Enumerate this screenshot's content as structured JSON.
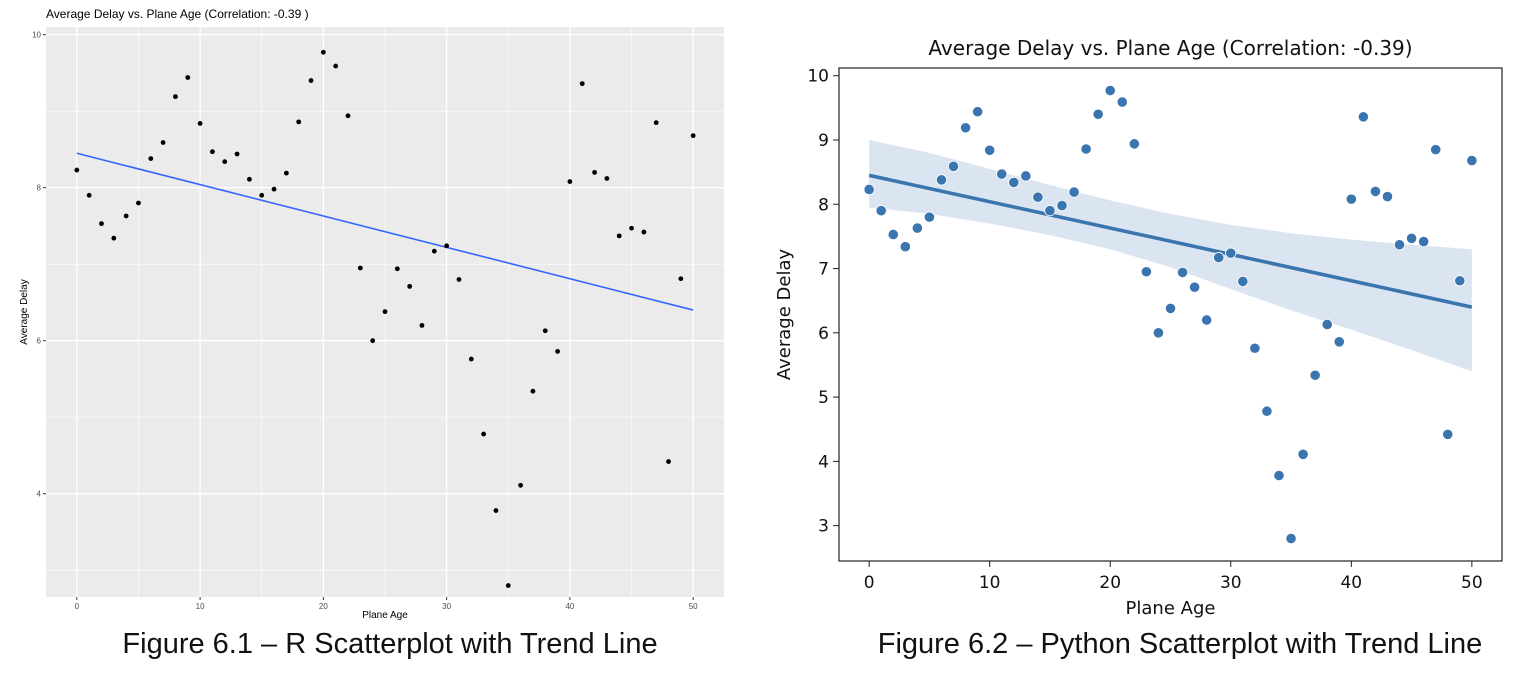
{
  "captions": {
    "r": "Figure 6.1 – R Scatterplot with Trend Line",
    "python": "Figure 6.2 – Python Scatterplot with Trend Line"
  },
  "chart_data": [
    {
      "id": "r-chart",
      "type": "scatter",
      "title": "Average Delay vs. Plane Age (Correlation: -0.39 )",
      "xlabel": "Plane Age",
      "ylabel": "Average Delay",
      "xlim": [
        -2.5,
        52.5
      ],
      "ylim": [
        2.65,
        10.1
      ],
      "xticks": [
        0,
        10,
        20,
        30,
        40,
        50
      ],
      "yticks": [
        4,
        6,
        8,
        10
      ],
      "grid": true,
      "legend": "none",
      "colors": {
        "panel_bg": "#ebebeb",
        "grid": "#ffffff",
        "points": "#000000",
        "trend": "#3366ff"
      },
      "trend_line": {
        "x": [
          0,
          50
        ],
        "y": [
          8.45,
          6.4
        ]
      },
      "x": [
        0,
        1,
        2,
        3,
        4,
        5,
        6,
        7,
        8,
        9,
        10,
        11,
        12,
        13,
        14,
        15,
        16,
        17,
        18,
        19,
        20,
        21,
        22,
        23,
        24,
        25,
        26,
        27,
        28,
        29,
        30,
        31,
        32,
        33,
        34,
        35,
        36,
        37,
        38,
        39,
        40,
        41,
        42,
        43,
        44,
        45,
        46,
        47,
        48,
        49,
        50
      ],
      "y": [
        8.23,
        7.9,
        7.53,
        7.34,
        7.63,
        7.8,
        8.38,
        8.59,
        9.19,
        9.44,
        8.84,
        8.47,
        8.34,
        8.44,
        8.11,
        7.9,
        7.98,
        8.19,
        8.86,
        9.4,
        9.77,
        9.59,
        8.94,
        6.95,
        6.0,
        6.38,
        6.94,
        6.71,
        6.2,
        7.17,
        7.24,
        6.8,
        5.76,
        4.78,
        3.78,
        2.8,
        4.11,
        5.34,
        6.13,
        5.86,
        8.08,
        9.36,
        8.2,
        8.12,
        7.37,
        7.47,
        7.42,
        8.85,
        4.42,
        6.81,
        8.68
      ]
    },
    {
      "id": "python-chart",
      "type": "scatter",
      "title": "Average Delay vs. Plane Age (Correlation: -0.39)",
      "xlabel": "Plane Age",
      "ylabel": "Average Delay",
      "xlim": [
        -2.5,
        52.5
      ],
      "ylim": [
        2.45,
        10.12
      ],
      "xticks": [
        0,
        10,
        20,
        30,
        40,
        50
      ],
      "yticks": [
        3,
        4,
        5,
        6,
        7,
        8,
        9,
        10
      ],
      "grid": false,
      "legend": "none",
      "colors": {
        "panel_bg": "#ffffff",
        "points": "#3a75b0",
        "trend": "#3a75b0",
        "band": "#cfdcec"
      },
      "trend_line": {
        "x": [
          0,
          50
        ],
        "y": [
          8.45,
          6.4
        ]
      },
      "confidence_band": {
        "x": [
          0,
          5,
          10,
          15,
          20,
          25,
          30,
          35,
          40,
          45,
          50
        ],
        "lower": [
          7.95,
          7.85,
          7.7,
          7.52,
          7.3,
          7.02,
          6.68,
          6.35,
          6.05,
          5.73,
          5.4
        ],
        "upper": [
          9.0,
          8.8,
          8.55,
          8.3,
          8.06,
          7.85,
          7.68,
          7.55,
          7.45,
          7.37,
          7.3
        ]
      },
      "x": [
        0,
        1,
        2,
        3,
        4,
        5,
        6,
        7,
        8,
        9,
        10,
        11,
        12,
        13,
        14,
        15,
        16,
        17,
        18,
        19,
        20,
        21,
        22,
        23,
        24,
        25,
        26,
        27,
        28,
        29,
        30,
        31,
        32,
        33,
        34,
        35,
        36,
        37,
        38,
        39,
        40,
        41,
        42,
        43,
        44,
        45,
        46,
        47,
        48,
        49,
        50
      ],
      "y": [
        8.23,
        7.9,
        7.53,
        7.34,
        7.63,
        7.8,
        8.38,
        8.59,
        9.19,
        9.44,
        8.84,
        8.47,
        8.34,
        8.44,
        8.11,
        7.9,
        7.98,
        8.19,
        8.86,
        9.4,
        9.77,
        9.59,
        8.94,
        6.95,
        6.0,
        6.38,
        6.94,
        6.71,
        6.2,
        7.17,
        7.24,
        6.8,
        5.76,
        4.78,
        3.78,
        2.8,
        4.11,
        5.34,
        6.13,
        5.86,
        8.08,
        9.36,
        8.2,
        8.12,
        7.37,
        7.47,
        7.42,
        8.85,
        4.42,
        6.81,
        8.68
      ]
    }
  ]
}
